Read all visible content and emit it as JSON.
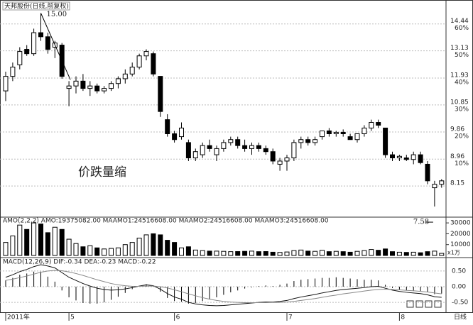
{
  "chart_data": [
    {
      "type": "candlestick",
      "title": "天邦股份(日线,前复权)",
      "categories": [
        "2011年",
        null,
        null,
        null,
        null,
        null,
        null,
        null,
        null,
        "5",
        null,
        null,
        null,
        null,
        null,
        null,
        null,
        null,
        null,
        null,
        null,
        null,
        null,
        null,
        "6",
        null,
        null,
        null,
        null,
        null,
        null,
        null,
        null,
        null,
        null,
        null,
        null,
        null,
        null,
        null,
        "7",
        null,
        null,
        null,
        null,
        null,
        null,
        null,
        null,
        null,
        null,
        null,
        null,
        null,
        null,
        null,
        "8",
        null,
        null,
        null,
        null,
        null,
        null
      ],
      "open": [
        11.4,
        12.0,
        12.5,
        13.2,
        13.0,
        14.0,
        13.8,
        13.3,
        13.4,
        11.5,
        11.6,
        11.8,
        11.5,
        11.6,
        11.4,
        11.5,
        11.7,
        11.9,
        12.1,
        12.4,
        12.9,
        13.0,
        12.0,
        10.3,
        9.8,
        9.7,
        9.5,
        9.0,
        9.1,
        9.4,
        9.1,
        9.3,
        9.5,
        9.6,
        9.4,
        9.3,
        9.4,
        9.3,
        9.2,
        8.8,
        8.9,
        9.0,
        9.5,
        9.6,
        9.5,
        9.7,
        9.9,
        9.8,
        9.85,
        9.7,
        9.6,
        9.8,
        10.0,
        10.2,
        10.0,
        9.1,
        9.0,
        9.0,
        8.95,
        9.1,
        8.8,
        8.1,
        8.2
      ],
      "high": [
        12.2,
        12.6,
        13.3,
        13.4,
        14.2,
        15.0,
        14.0,
        13.6,
        13.5,
        11.8,
        12.0,
        12.1,
        11.8,
        11.7,
        11.6,
        11.8,
        12.0,
        12.3,
        12.6,
        13.0,
        13.2,
        13.1,
        12.0,
        10.5,
        9.9,
        10.2,
        9.6,
        9.3,
        9.5,
        9.6,
        9.4,
        9.6,
        9.7,
        9.7,
        9.6,
        9.5,
        9.5,
        9.4,
        9.3,
        9.0,
        9.1,
        9.6,
        9.7,
        9.7,
        9.7,
        9.9,
        10.0,
        9.9,
        9.95,
        9.8,
        9.8,
        10.1,
        10.3,
        10.3,
        10.0,
        9.2,
        9.1,
        9.1,
        9.2,
        9.2,
        8.9,
        8.3,
        8.35
      ],
      "low": [
        11.0,
        11.8,
        12.3,
        12.9,
        12.9,
        13.6,
        13.0,
        12.8,
        11.9,
        10.8,
        11.3,
        11.4,
        11.2,
        11.3,
        11.3,
        11.4,
        11.5,
        11.7,
        12.0,
        12.3,
        12.7,
        12.0,
        10.4,
        9.7,
        9.5,
        9.6,
        8.9,
        8.9,
        9.0,
        9.2,
        8.9,
        9.2,
        9.4,
        9.3,
        9.2,
        9.1,
        9.2,
        9.1,
        8.8,
        8.6,
        8.6,
        8.9,
        9.3,
        9.4,
        9.4,
        9.6,
        9.7,
        9.7,
        9.7,
        9.6,
        9.5,
        9.7,
        9.9,
        10.0,
        9.0,
        8.9,
        8.9,
        8.9,
        8.8,
        8.8,
        8.2,
        7.58,
        8.1
      ],
      "close": [
        12.0,
        12.4,
        13.1,
        13.0,
        14.0,
        13.8,
        13.2,
        13.5,
        12.0,
        11.6,
        11.8,
        11.5,
        11.6,
        11.4,
        11.5,
        11.7,
        11.9,
        12.1,
        12.4,
        12.9,
        13.1,
        12.1,
        10.6,
        9.8,
        9.6,
        10.0,
        9.0,
        9.2,
        9.4,
        9.3,
        9.3,
        9.5,
        9.6,
        9.4,
        9.3,
        9.4,
        9.3,
        9.2,
        8.9,
        8.9,
        9.0,
        9.5,
        9.6,
        9.5,
        9.6,
        9.9,
        9.8,
        9.85,
        9.8,
        9.6,
        9.8,
        10.0,
        10.2,
        10.1,
        9.1,
        9.0,
        9.05,
        8.95,
        9.1,
        8.85,
        8.3,
        8.2,
        8.3
      ],
      "ylim": [
        7.32,
        15.4
      ],
      "log_scale": true,
      "grid": true,
      "yticks": [
        14.44,
        13.13,
        11.93,
        10.85,
        9.86,
        8.96,
        8.15
      ],
      "percent_labels": [
        "60%",
        "50%",
        "40%",
        "30%",
        "20%",
        "10%"
      ],
      "annotations": [
        "15.00",
        "7.58",
        "价跌量缩"
      ],
      "period_label": "日线"
    },
    {
      "type": "bar",
      "title": "AMO(2,2,2) AMO:19375082.00 MAAMO1:24516608.00 MAAMO2:24516608.00 MAAMO3:24516608.00",
      "values": [
        12000,
        18000,
        28000,
        24000,
        30000,
        29000,
        21000,
        26000,
        24000,
        15000,
        11000,
        8000,
        9000,
        7000,
        6000,
        6500,
        7000,
        10000,
        12000,
        16000,
        19000,
        20000,
        19000,
        14000,
        12000,
        7000,
        8000,
        5000,
        4500,
        4000,
        4000,
        3800,
        3500,
        3600,
        3800,
        4000,
        3500,
        3600,
        3000,
        2800,
        3200,
        4500,
        5000,
        4000,
        3800,
        4800,
        3500,
        3800,
        3500,
        3000,
        3800,
        4500,
        5500,
        4800,
        6000,
        3500,
        3000,
        2800,
        3000,
        2500,
        3500,
        4000,
        1937.5082
      ],
      "ylim": [
        0,
        34000
      ],
      "yticks": [
        30000,
        20000,
        10000
      ],
      "unit_label": "x1万"
    },
    {
      "type": "macd",
      "title": "MACD(12,26,9) DIF:-0.34 DEA:-0.23 MACD:-0.22",
      "series": [
        {
          "color": "#111111",
          "values": [
            0.3,
            0.38,
            0.48,
            0.55,
            0.64,
            0.7,
            0.66,
            0.6,
            0.45,
            0.3,
            0.2,
            0.1,
            0.02,
            -0.05,
            -0.09,
            -0.11,
            -0.1,
            -0.07,
            -0.03,
            0.02,
            0.06,
            0.03,
            -0.08,
            -0.22,
            -0.33,
            -0.4,
            -0.5,
            -0.55,
            -0.58,
            -0.6,
            -0.61,
            -0.6,
            -0.58,
            -0.56,
            -0.54,
            -0.52,
            -0.5,
            -0.49,
            -0.49,
            -0.47,
            -0.44,
            -0.38,
            -0.33,
            -0.29,
            -0.25,
            -0.2,
            -0.16,
            -0.12,
            -0.09,
            -0.07,
            -0.05,
            -0.03,
            0.0,
            0.01,
            -0.05,
            -0.11,
            -0.15,
            -0.18,
            -0.2,
            -0.22,
            -0.26,
            -0.32,
            -0.34
          ]
        },
        {
          "color": "#888888",
          "values": [
            0.2,
            0.24,
            0.29,
            0.34,
            0.4,
            0.46,
            0.5,
            0.52,
            0.51,
            0.47,
            0.42,
            0.36,
            0.29,
            0.22,
            0.16,
            0.1,
            0.06,
            0.03,
            0.01,
            0.01,
            0.02,
            0.02,
            0.0,
            -0.04,
            -0.1,
            -0.16,
            -0.23,
            -0.29,
            -0.35,
            -0.4,
            -0.44,
            -0.47,
            -0.49,
            -0.5,
            -0.51,
            -0.51,
            -0.51,
            -0.51,
            -0.5,
            -0.5,
            -0.49,
            -0.47,
            -0.44,
            -0.41,
            -0.38,
            -0.34,
            -0.3,
            -0.27,
            -0.23,
            -0.2,
            -0.17,
            -0.14,
            -0.11,
            -0.09,
            -0.08,
            -0.09,
            -0.1,
            -0.12,
            -0.13,
            -0.15,
            -0.17,
            -0.2,
            -0.23
          ]
        }
      ],
      "histogram": [
        0.2,
        0.28,
        0.38,
        0.42,
        0.48,
        0.48,
        0.32,
        0.16,
        -0.12,
        -0.34,
        -0.44,
        -0.52,
        -0.54,
        -0.54,
        -0.5,
        -0.42,
        -0.32,
        -0.2,
        -0.08,
        0.02,
        0.08,
        0.02,
        -0.16,
        -0.36,
        -0.46,
        -0.48,
        -0.54,
        -0.52,
        -0.46,
        -0.4,
        -0.34,
        -0.26,
        -0.18,
        -0.12,
        -0.06,
        -0.02,
        0.02,
        0.04,
        0.02,
        0.06,
        0.1,
        0.18,
        0.22,
        0.24,
        0.26,
        0.28,
        0.28,
        0.3,
        0.28,
        0.26,
        0.24,
        0.22,
        0.22,
        0.2,
        0.06,
        -0.04,
        -0.1,
        -0.12,
        -0.14,
        -0.14,
        -0.18,
        -0.24,
        -0.22
      ],
      "ylim": [
        -0.77,
        0.86
      ],
      "yticks": [
        {
          "value": 0.5,
          "label": "0.50"
        },
        {
          "value": 0,
          "label": "0.00"
        },
        {
          "value": -0.5,
          "label": "-0.50"
        }
      ]
    }
  ]
}
